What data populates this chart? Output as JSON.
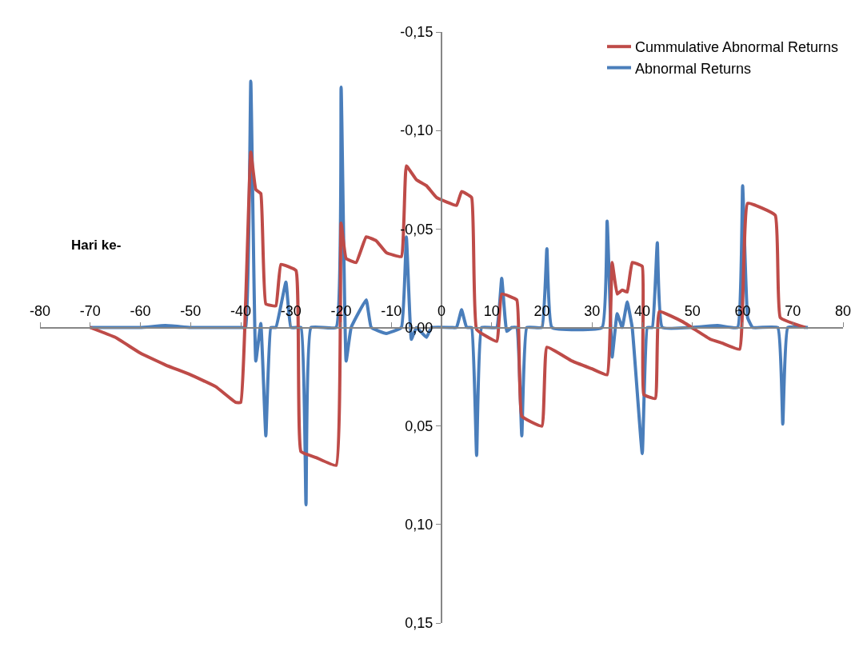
{
  "chart_data": {
    "type": "line",
    "xlabel": "Hari ke-",
    "xlim": [
      -80,
      80
    ],
    "xticks": [
      -80,
      -70,
      -60,
      -50,
      -40,
      -30,
      -20,
      -10,
      0,
      10,
      20,
      30,
      40,
      50,
      60,
      70,
      80
    ],
    "ylim": [
      0.15,
      -0.15
    ],
    "yticks": [
      {
        "value": -0.15,
        "label": "-0,15"
      },
      {
        "value": -0.1,
        "label": "-0,10"
      },
      {
        "value": -0.05,
        "label": "-0,05"
      },
      {
        "value": 0,
        "label": "0,00"
      },
      {
        "value": 0.05,
        "label": "0,05"
      },
      {
        "value": 0.1,
        "label": "0,10"
      },
      {
        "value": 0.15,
        "label": "0,15"
      }
    ],
    "legend": "top right",
    "marker": "none",
    "line_style": "solid",
    "series": [
      {
        "name": "Abnormal Returns",
        "color": "#4a7ebb",
        "x": [
          -70,
          -60,
          -55,
          -50,
          -45,
          -40,
          -39,
          -38,
          -37,
          -36,
          -35,
          -34,
          -33,
          -31,
          -30,
          -28,
          -27,
          -26,
          -21,
          -20,
          -19,
          -18,
          -15,
          -14,
          -11,
          -8,
          -7,
          -6,
          -5,
          -3,
          -2,
          2,
          3,
          4,
          5,
          6,
          7,
          8,
          11,
          12,
          13,
          14,
          15,
          16,
          17,
          20,
          21,
          22,
          32,
          33,
          34,
          35,
          36,
          37,
          38,
          40,
          41,
          42,
          43,
          44,
          55,
          59,
          60,
          61,
          62,
          67,
          68,
          69,
          73
        ],
        "values": [
          0,
          0,
          -0.001,
          0,
          0,
          0,
          0,
          -0.125,
          0.017,
          -0.002,
          0.055,
          0,
          0,
          -0.023,
          0,
          0,
          0.09,
          0,
          0,
          -0.122,
          0.017,
          0,
          -0.014,
          0,
          0.003,
          0,
          -0.046,
          0.006,
          0,
          0.005,
          0,
          0,
          0,
          -0.009,
          0,
          0,
          0.065,
          0,
          0,
          -0.025,
          0.002,
          0,
          0,
          0.055,
          0,
          0,
          -0.04,
          0,
          0,
          -0.054,
          0.015,
          -0.007,
          0,
          -0.013,
          0,
          0.064,
          0,
          0,
          -0.043,
          0,
          -0.001,
          0,
          -0.072,
          -0.005,
          0,
          0,
          0.049,
          0,
          0
        ]
      },
      {
        "name": "Cummulative Abnormal Returns",
        "color": "#be4b48",
        "x": [
          -70,
          -65,
          -60,
          -55,
          -50,
          -45,
          -41,
          -40,
          -38,
          -37,
          -36,
          -35,
          -33,
          -32,
          -29,
          -28,
          -25,
          -21,
          -20,
          -19,
          -17,
          -15,
          -13,
          -11,
          -8,
          -7,
          -5,
          -3,
          -1,
          3,
          4,
          6,
          7,
          11,
          12,
          15,
          16,
          20,
          21,
          26,
          30,
          33,
          34,
          35,
          36,
          37,
          38,
          40,
          40.3,
          42.6,
          43.4,
          48,
          53.6,
          56,
          59.4,
          61,
          66.5,
          67.5,
          72.5
        ],
        "values": [
          0,
          0.005,
          0.013,
          0.019,
          0.024,
          0.03,
          0.038,
          0.038,
          -0.089,
          -0.07,
          -0.068,
          -0.012,
          -0.011,
          -0.032,
          -0.029,
          0.063,
          0.066,
          0.07,
          -0.053,
          -0.035,
          -0.033,
          -0.046,
          -0.044,
          -0.038,
          -0.036,
          -0.082,
          -0.075,
          -0.072,
          -0.066,
          -0.062,
          -0.069,
          -0.066,
          0.001,
          0.007,
          -0.017,
          -0.014,
          0.045,
          0.05,
          0.01,
          0.017,
          0.021,
          0.024,
          -0.033,
          -0.017,
          -0.019,
          -0.018,
          -0.033,
          -0.031,
          0.034,
          0.036,
          -0.008,
          -0.003,
          0.006,
          0.008,
          0.011,
          -0.063,
          -0.057,
          -0.005,
          0
        ]
      }
    ]
  }
}
